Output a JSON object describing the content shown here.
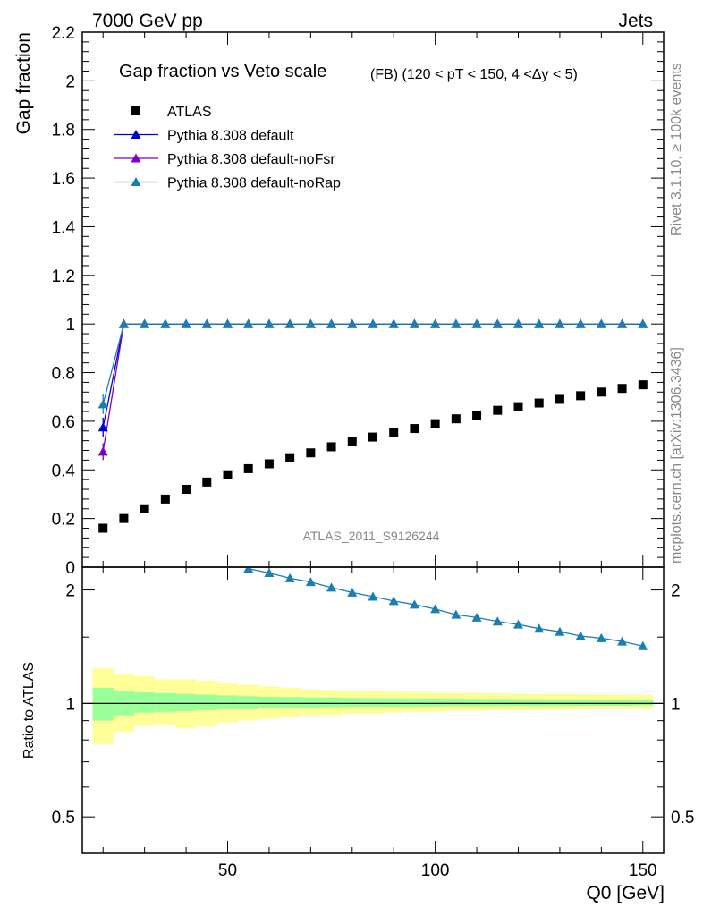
{
  "header": {
    "left": "7000 GeV pp",
    "right": "Jets"
  },
  "side_labels": {
    "rivet": "Rivet 3.1.10, ≥ 100k events",
    "mcplots": "mcplots.cern.ch [arXiv:1306.3436]"
  },
  "watermark": "ATLAS_2011_S9126244",
  "colors": {
    "atlas": "#000000",
    "default": "#0000cc",
    "noFsr": "#7a00cc",
    "noRap": "#1a7fb0",
    "band_outer": "#ffff99",
    "band_inner": "#99ff99"
  },
  "chart_data": [
    {
      "type": "scatter",
      "title": "Gap fraction vs Veto scale",
      "subtitle": "(FB) (120 < pT < 150, 4 <Δy < 5)",
      "ylabel": "Gap fraction",
      "xlabel": "",
      "xlim": [
        15,
        155
      ],
      "ylim": [
        0,
        2.2
      ],
      "yticks": [
        "0",
        "0.2",
        "0.4",
        "0.6",
        "0.8",
        "1",
        "1.2",
        "1.4",
        "1.6",
        "1.8",
        "2",
        "2.2"
      ],
      "legend_position": "top-left",
      "x": [
        20,
        25,
        30,
        35,
        40,
        45,
        50,
        55,
        60,
        65,
        70,
        75,
        80,
        85,
        90,
        95,
        100,
        105,
        110,
        115,
        120,
        125,
        130,
        135,
        140,
        145,
        150
      ],
      "series": [
        {
          "name": "ATLAS",
          "marker": "square",
          "values": [
            0.16,
            0.2,
            0.24,
            0.28,
            0.32,
            0.35,
            0.38,
            0.405,
            0.425,
            0.45,
            0.47,
            0.495,
            0.515,
            0.535,
            0.555,
            0.57,
            0.59,
            0.61,
            0.625,
            0.645,
            0.66,
            0.675,
            0.69,
            0.705,
            0.72,
            0.735,
            0.75
          ]
        },
        {
          "name": "Pythia 8.308 default",
          "marker": "triangle",
          "values": [
            0.575,
            1,
            1,
            1,
            1,
            1,
            1,
            1,
            1,
            1,
            1,
            1,
            1,
            1,
            1,
            1,
            1,
            1,
            1,
            1,
            1,
            1,
            1,
            1,
            1,
            1,
            1
          ]
        },
        {
          "name": "Pythia 8.308 default-noFsr",
          "marker": "triangle",
          "values": [
            0.475,
            1,
            1,
            1,
            1,
            1,
            1,
            1,
            1,
            1,
            1,
            1,
            1,
            1,
            1,
            1,
            1,
            1,
            1,
            1,
            1,
            1,
            1,
            1,
            1,
            1,
            1
          ]
        },
        {
          "name": "Pythia 8.308 default-noRap",
          "marker": "triangle",
          "values": [
            0.67,
            1,
            1,
            1,
            1,
            1,
            1,
            1,
            1,
            1,
            1,
            1,
            1,
            1,
            1,
            1,
            1,
            1,
            1,
            1,
            1,
            1,
            1,
            1,
            1,
            1,
            1
          ]
        }
      ]
    },
    {
      "type": "line",
      "ylabel": "Ratio to ATLAS",
      "xlabel": "Q0 [GeV]",
      "xlim": [
        15,
        155
      ],
      "ylim": [
        0.4,
        2.3
      ],
      "yscale": "log",
      "xticks": [
        "50",
        "100",
        "150"
      ],
      "yticks": [
        "0.5",
        "1",
        "2"
      ],
      "reference_line": 1,
      "x": [
        55,
        60,
        65,
        70,
        75,
        80,
        85,
        90,
        95,
        100,
        105,
        110,
        115,
        120,
        125,
        130,
        135,
        140,
        145,
        150
      ],
      "series": [
        {
          "name": "Pythia 8.308 default-noRap",
          "marker": "triangle",
          "values": [
            2.28,
            2.22,
            2.15,
            2.1,
            2.03,
            1.97,
            1.92,
            1.87,
            1.83,
            1.78,
            1.72,
            1.69,
            1.65,
            1.62,
            1.58,
            1.55,
            1.51,
            1.49,
            1.46,
            1.42
          ]
        }
      ],
      "band_x": [
        20,
        25,
        30,
        35,
        40,
        45,
        50,
        55,
        60,
        65,
        70,
        75,
        80,
        85,
        90,
        95,
        100,
        105,
        110,
        115,
        120,
        125,
        130,
        135,
        140,
        145,
        150
      ],
      "band_inner_low": [
        0.9,
        0.93,
        0.945,
        0.95,
        0.955,
        0.96,
        0.965,
        0.965,
        0.97,
        0.972,
        0.975,
        0.977,
        0.978,
        0.98,
        0.98,
        0.981,
        0.982,
        0.983,
        0.983,
        0.984,
        0.985,
        0.985,
        0.985,
        0.986,
        0.986,
        0.986,
        0.987
      ],
      "band_inner_high": [
        1.1,
        1.08,
        1.07,
        1.065,
        1.06,
        1.055,
        1.05,
        1.045,
        1.042,
        1.04,
        1.038,
        1.036,
        1.034,
        1.033,
        1.032,
        1.031,
        1.03,
        1.029,
        1.028,
        1.027,
        1.026,
        1.026,
        1.025,
        1.025,
        1.024,
        1.024,
        1.023
      ],
      "band_outer_low": [
        0.78,
        0.84,
        0.87,
        0.88,
        0.86,
        0.87,
        0.89,
        0.9,
        0.91,
        0.92,
        0.93,
        0.93,
        0.94,
        0.94,
        0.945,
        0.95,
        0.95,
        0.955,
        0.955,
        0.96,
        0.96,
        0.962,
        0.963,
        0.964,
        0.965,
        0.966,
        0.966
      ],
      "band_outer_high": [
        1.24,
        1.2,
        1.18,
        1.16,
        1.16,
        1.15,
        1.13,
        1.12,
        1.11,
        1.1,
        1.09,
        1.085,
        1.08,
        1.078,
        1.075,
        1.072,
        1.07,
        1.067,
        1.065,
        1.063,
        1.062,
        1.06,
        1.06,
        1.058,
        1.057,
        1.056,
        1.055
      ]
    }
  ]
}
